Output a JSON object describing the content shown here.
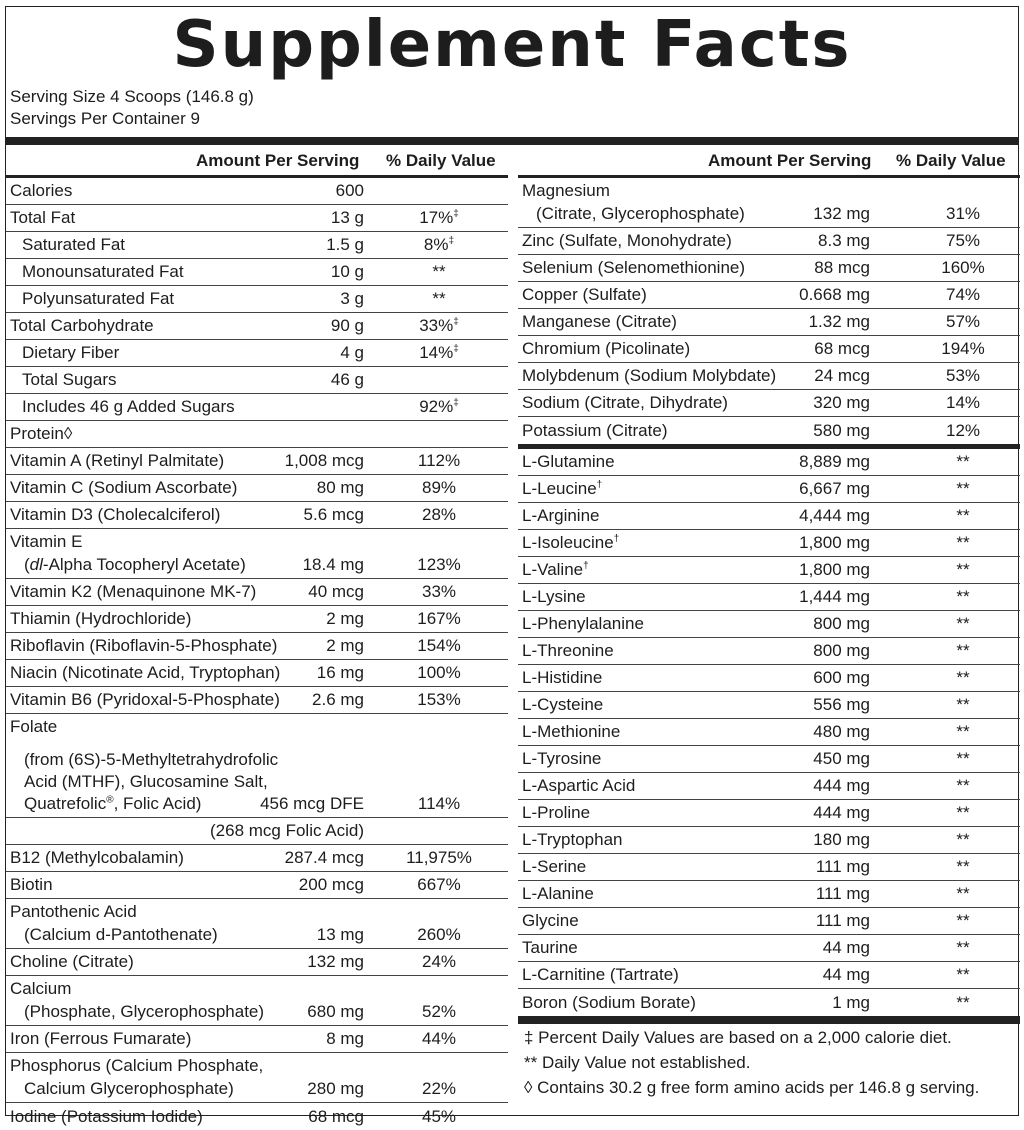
{
  "title": "Supplement Facts",
  "serving_size": "Serving Size 4 Scoops (146.8 g)",
  "servings_per_container": "Servings Per Container 9",
  "header": {
    "amount": "Amount Per Serving",
    "dv": "% Daily Value"
  },
  "left_rows": [
    {
      "name": "Calories",
      "amount": "600",
      "dv": ""
    },
    {
      "name": "Total Fat",
      "amount": "13 g",
      "dv": "17%‡"
    },
    {
      "name": "Saturated Fat",
      "amount": "1.5 g",
      "dv": "8%‡",
      "indent": true
    },
    {
      "name": "Monounsaturated Fat",
      "amount": "10 g",
      "dv": "**",
      "indent": true
    },
    {
      "name": "Polyunsaturated Fat",
      "amount": "3 g",
      "dv": "**",
      "indent": true
    },
    {
      "name": "Total Carbohydrate",
      "amount": "90 g",
      "dv": "33%‡"
    },
    {
      "name": "Dietary Fiber",
      "amount": "4 g",
      "dv": "14%‡",
      "indent": true
    },
    {
      "name": "Total Sugars",
      "amount": "46 g",
      "dv": "",
      "indent": true
    },
    {
      "name": "Includes 46 g Added Sugars",
      "amount": "",
      "dv": "92%‡",
      "indent": true
    },
    {
      "name": "Protein◊",
      "amount": "",
      "dv": ""
    },
    {
      "name": "Vitamin A (Retinyl Palmitate)",
      "amount": "1,008 mcg",
      "dv": "112%"
    },
    {
      "name": "Vitamin C (Sodium Ascorbate)",
      "amount": "80 mg",
      "dv": "89%"
    },
    {
      "name": "Vitamin D3 (Cholecalciferol)",
      "amount": "5.6 mcg",
      "dv": "28%"
    },
    {
      "name": "Vitamin E",
      "name2": "(dl-Alpha Tocopheryl Acetate)",
      "amount": "18.4 mg",
      "dv": "123%",
      "tall": true
    },
    {
      "name": "Vitamin K2 (Menaquinone MK-7)",
      "amount": "40 mcg",
      "dv": "33%"
    },
    {
      "name": "Thiamin (Hydrochloride)",
      "amount": "2 mg",
      "dv": "167%"
    },
    {
      "name": "Riboflavin (Riboflavin-5-Phosphate)",
      "amount": "2 mg",
      "dv": "154%"
    },
    {
      "name": "Niacin (Nicotinate Acid, Tryptophan)",
      "amount": "16 mg",
      "dv": "100%"
    },
    {
      "name": "Vitamin B6 (Pyridoxal-5-Phosphate)",
      "amount": "2.6 mg",
      "dv": "153%"
    },
    {
      "name": "Folate",
      "name2": "(from (6S)-5-Methyltetrahydrofolic\nAcid (MTHF), Glucosamine Salt,\nQuatrefolic®, Folic Acid)",
      "amount": "456 mcg DFE",
      "dv": "114%",
      "folate": true
    },
    {
      "name": "",
      "amount": "(268 mcg Folic Acid)",
      "dv": ""
    },
    {
      "name": "B12 (Methylcobalamin)",
      "amount": "287.4 mcg",
      "dv": "11,975%"
    },
    {
      "name": "Biotin",
      "amount": "200 mcg",
      "dv": "667%"
    },
    {
      "name": "Pantothenic Acid",
      "name2": "(Calcium d-Pantothenate)",
      "amount": "13 mg",
      "dv": "260%",
      "tall": true
    },
    {
      "name": "Choline (Citrate)",
      "amount": "132 mg",
      "dv": "24%"
    },
    {
      "name": "Calcium",
      "name2": "(Phosphate, Glycerophosphate)",
      "amount": "680 mg",
      "dv": "52%",
      "tall": true
    },
    {
      "name": "Iron (Ferrous Fumarate)",
      "amount": "8 mg",
      "dv": "44%"
    },
    {
      "name": "Phosphorus (Calcium Phosphate,",
      "name2": "Calcium Glycerophosphate)",
      "amount": "280 mg",
      "dv": "22%",
      "tall": true
    },
    {
      "name": "Iodine (Potassium Iodide)",
      "amount": "68 mcg",
      "dv": "45%",
      "last": true
    }
  ],
  "right_minerals": [
    {
      "name": "Magnesium",
      "name2": "(Citrate, Glycerophosphate)",
      "amount": "132 mg",
      "dv": "31%",
      "tall": true
    },
    {
      "name": "Zinc (Sulfate, Monohydrate)",
      "amount": "8.3 mg",
      "dv": "75%"
    },
    {
      "name": "Selenium (Selenomethionine)",
      "amount": "88 mcg",
      "dv": "160%"
    },
    {
      "name": "Copper (Sulfate)",
      "amount": "0.668 mg",
      "dv": "74%"
    },
    {
      "name": "Manganese (Citrate)",
      "amount": "1.32 mg",
      "dv": "57%"
    },
    {
      "name": "Chromium (Picolinate)",
      "amount": "68 mcg",
      "dv": "194%"
    },
    {
      "name": "Molybdenum (Sodium Molybdate)",
      "amount": "24 mcg",
      "dv": "53%"
    },
    {
      "name": "Sodium (Citrate, Dihydrate)",
      "amount": "320 mg",
      "dv": "14%"
    },
    {
      "name": "Potassium (Citrate)",
      "amount": "580 mg",
      "dv": "12%",
      "last": true
    }
  ],
  "right_aminos": [
    {
      "name": "L-Glutamine",
      "amount": "8,889 mg",
      "dv": "**"
    },
    {
      "name": "L-Leucine†",
      "amount": "6,667 mg",
      "dv": "**"
    },
    {
      "name": "L-Arginine",
      "amount": "4,444 mg",
      "dv": "**"
    },
    {
      "name": "L-Isoleucine†",
      "amount": "1,800 mg",
      "dv": "**"
    },
    {
      "name": "L-Valine†",
      "amount": "1,800 mg",
      "dv": "**"
    },
    {
      "name": "L-Lysine",
      "amount": "1,444 mg",
      "dv": "**"
    },
    {
      "name": "L-Phenylalanine",
      "amount": "800 mg",
      "dv": "**"
    },
    {
      "name": "L-Threonine",
      "amount": "800 mg",
      "dv": "**"
    },
    {
      "name": "L-Histidine",
      "amount": "600 mg",
      "dv": "**"
    },
    {
      "name": "L-Cysteine",
      "amount": "556 mg",
      "dv": "**"
    },
    {
      "name": "L-Methionine",
      "amount": "480 mg",
      "dv": "**"
    },
    {
      "name": "L-Tyrosine",
      "amount": "450 mg",
      "dv": "**"
    },
    {
      "name": "L-Aspartic Acid",
      "amount": "444 mg",
      "dv": "**"
    },
    {
      "name": "L-Proline",
      "amount": "444 mg",
      "dv": "**"
    },
    {
      "name": "L-Tryptophan",
      "amount": "180 mg",
      "dv": "**"
    },
    {
      "name": "L-Serine",
      "amount": "111 mg",
      "dv": "**"
    },
    {
      "name": "L-Alanine",
      "amount": "111 mg",
      "dv": "**"
    },
    {
      "name": "Glycine",
      "amount": "111 mg",
      "dv": "**"
    },
    {
      "name": "Taurine",
      "amount": "44 mg",
      "dv": "**"
    },
    {
      "name": "L-Carnitine (Tartrate)",
      "amount": "44 mg",
      "dv": "**"
    },
    {
      "name": "Boron (Sodium Borate)",
      "amount": "1 mg",
      "dv": "**",
      "last": true
    }
  ],
  "footnotes": [
    "‡ Percent Daily Values are based on a 2,000 calorie diet.",
    "** Daily Value not established.",
    "◊ Contains 30.2 g free form amino acids per 146.8 g serving."
  ]
}
